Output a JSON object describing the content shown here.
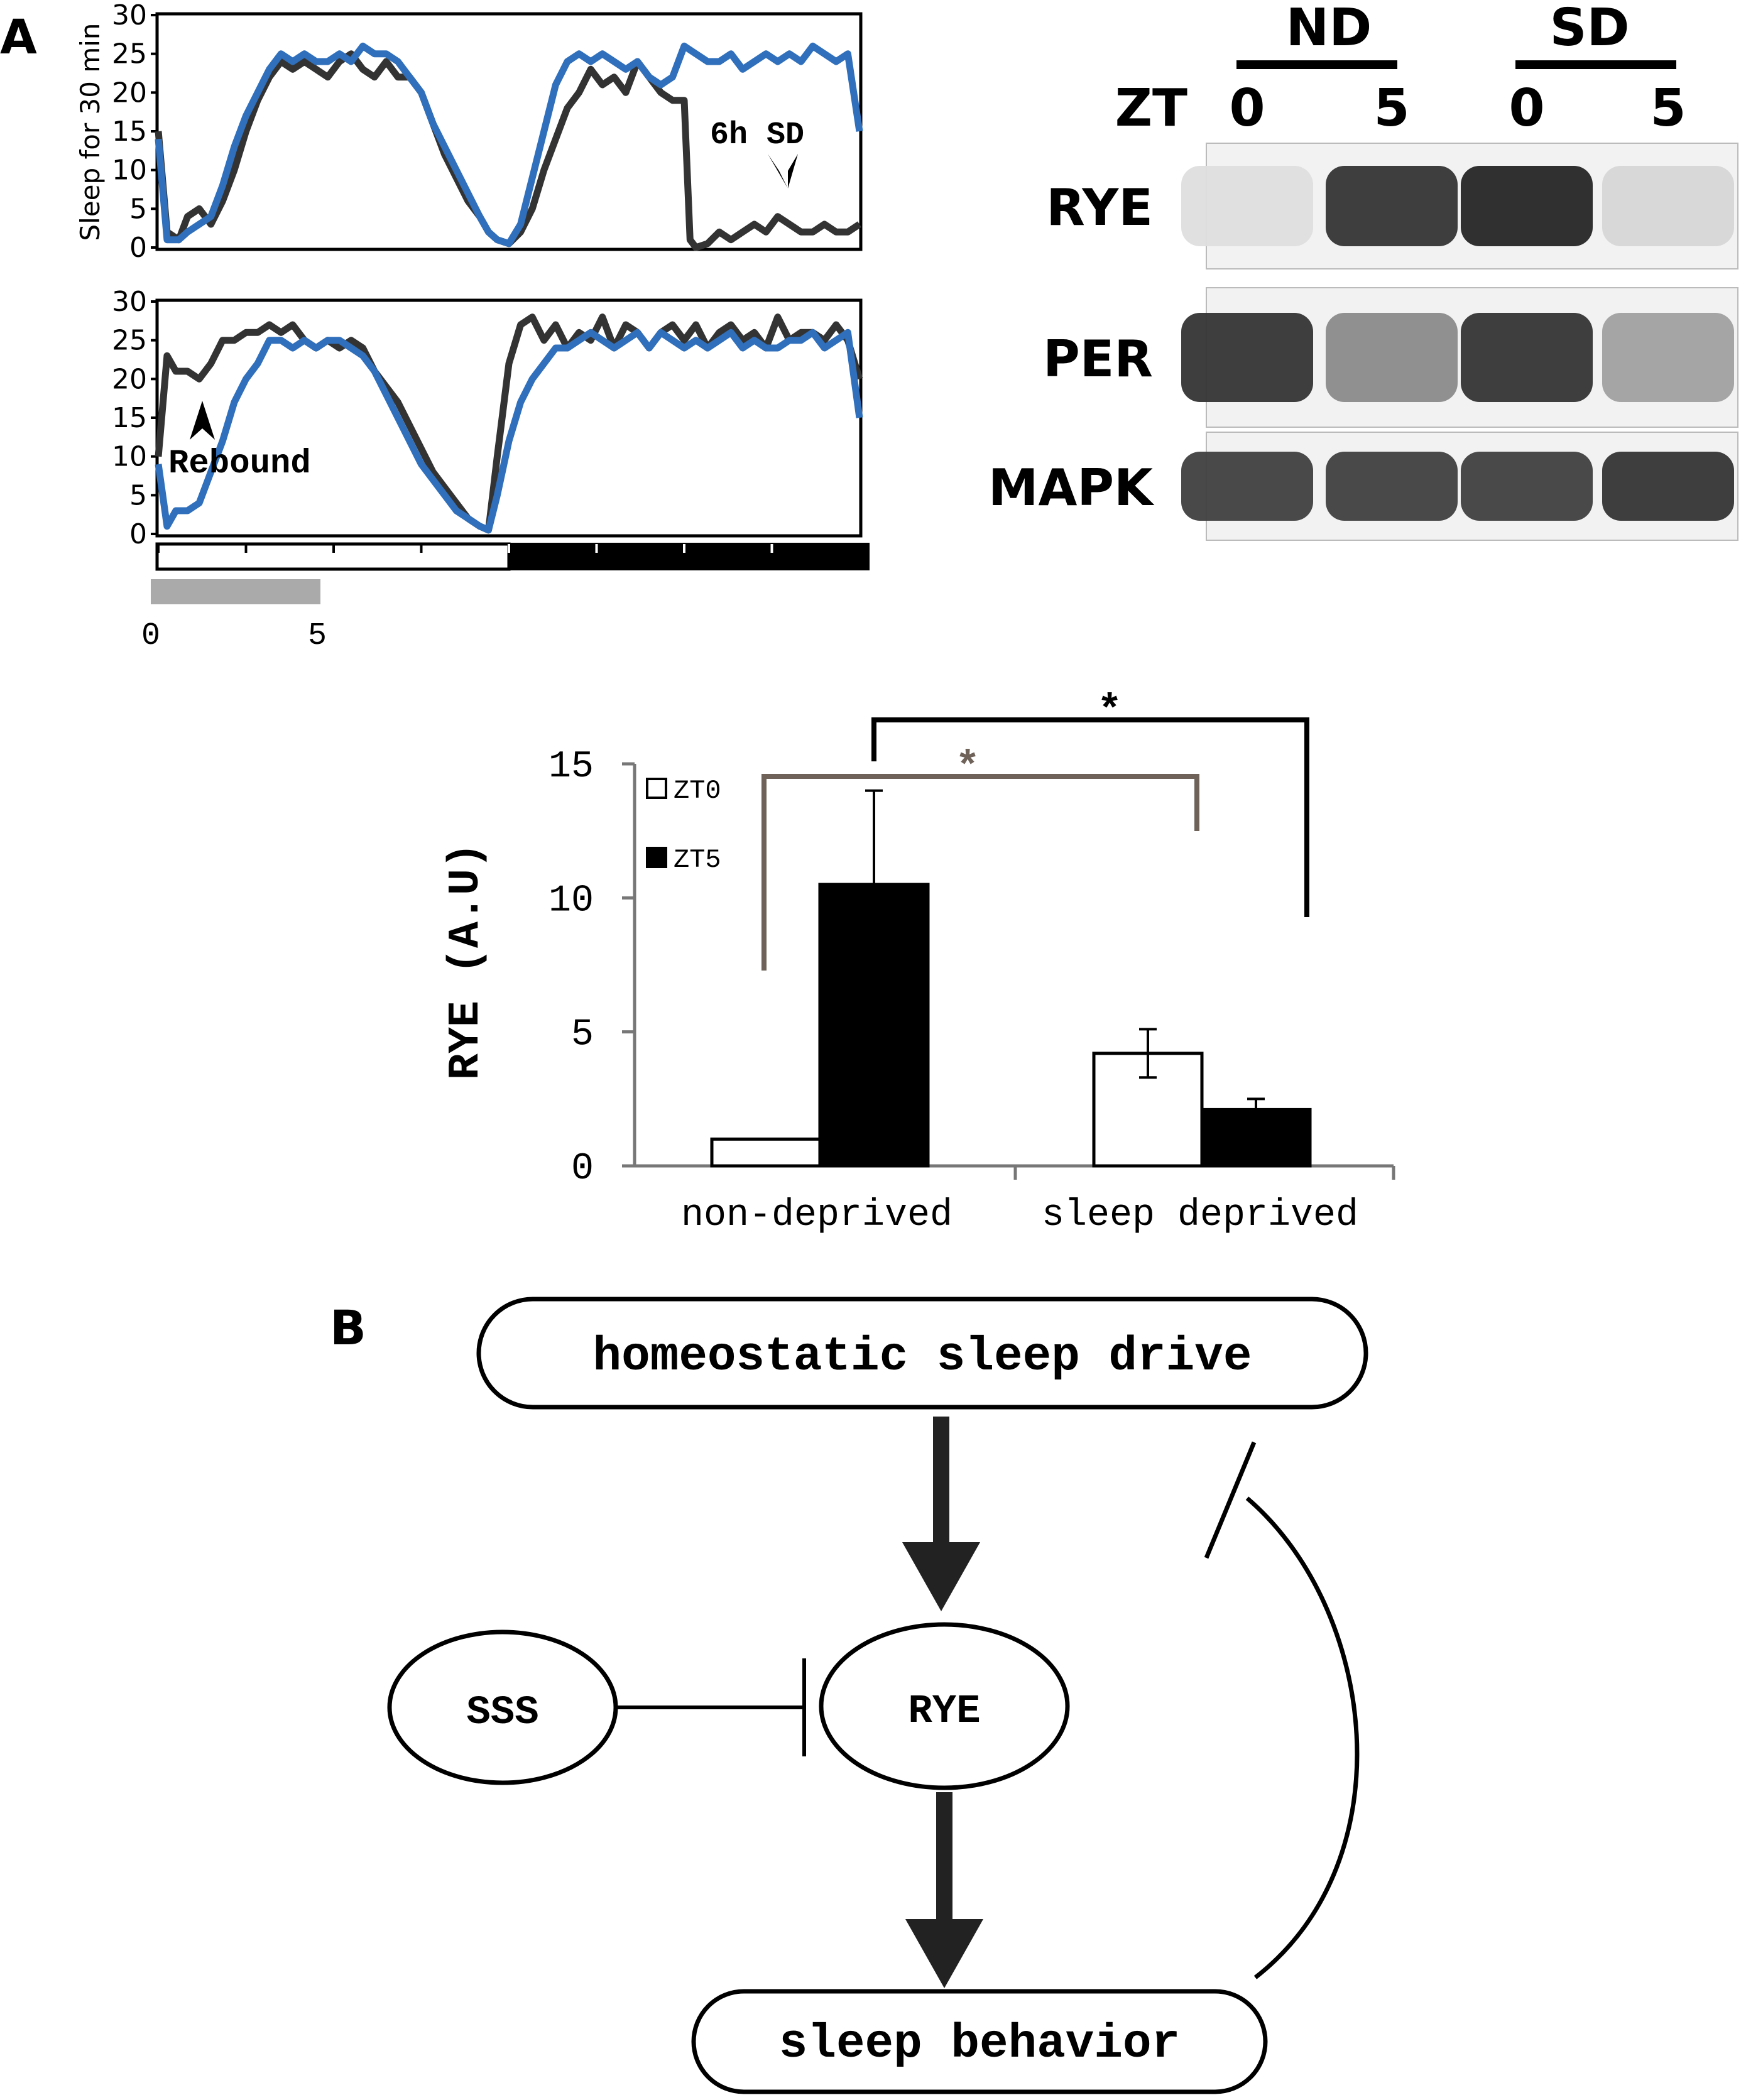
{
  "panel_labels": {
    "a": "A",
    "b": "B"
  },
  "colors": {
    "wild_type": "#333333",
    "mutant": "#2f6fbb",
    "bracket_gray": "#6e6259",
    "axis_gray": "#777777",
    "light_bar": "#ffffff",
    "dark_bar": "#000000",
    "gray_bar": "#aaaaaa"
  },
  "chart_data": [
    {
      "type": "line",
      "panel": "top sleep trace",
      "ylabel": "Sleep for 30 min",
      "ylim": [
        0,
        30
      ],
      "xlim": [
        0,
        24
      ],
      "yticks": [
        "0",
        "5",
        "10",
        "15",
        "20",
        "25",
        "30"
      ],
      "series": [
        {
          "color": "#333333",
          "x": [
            0,
            0.3,
            0.7,
            1,
            1.4,
            1.8,
            2.2,
            2.6,
            3,
            3.4,
            3.8,
            4.2,
            4.6,
            5,
            5.4,
            5.8,
            6.2,
            6.6,
            7,
            7.4,
            7.8,
            8.2,
            8.6,
            9,
            9.4,
            9.8,
            10.2,
            10.6,
            11,
            11.3,
            11.6,
            12,
            12.4,
            12.8,
            13.2,
            13.6,
            14,
            14.4,
            14.8,
            15.2,
            15.6,
            16,
            16.4,
            16.8,
            17.2,
            17.6,
            18,
            18.2,
            18.4,
            18.8,
            19.2,
            19.6,
            20,
            20.4,
            20.8,
            21.2,
            21.6,
            22,
            22.4,
            22.8,
            23.2,
            23.6,
            24
          ],
          "y": [
            15,
            2,
            1,
            4,
            5,
            3,
            6,
            10,
            15,
            19,
            22,
            24,
            23,
            24,
            23,
            22,
            24,
            25,
            23,
            22,
            24,
            22,
            22,
            20,
            16,
            12,
            9,
            6,
            4,
            2,
            1,
            0.5,
            2,
            5,
            10,
            14,
            18,
            20,
            23,
            21,
            22,
            20,
            24,
            22,
            20,
            19,
            19,
            1,
            0,
            0.5,
            2,
            1,
            2,
            3,
            2,
            4,
            3,
            2,
            2,
            3,
            2,
            2,
            3
          ]
        },
        {
          "color": "#2f6fbb",
          "x": [
            0,
            0.3,
            0.7,
            1,
            1.4,
            1.8,
            2.2,
            2.6,
            3,
            3.4,
            3.8,
            4.2,
            4.6,
            5,
            5.4,
            5.8,
            6.2,
            6.6,
            7,
            7.4,
            7.8,
            8.2,
            8.6,
            9,
            9.4,
            9.8,
            10.2,
            10.6,
            11,
            11.3,
            11.6,
            12,
            12.4,
            12.8,
            13.2,
            13.6,
            14,
            14.4,
            14.8,
            15.2,
            15.6,
            16,
            16.4,
            16.8,
            17.2,
            17.6,
            18,
            18.4,
            18.8,
            19.2,
            19.6,
            20,
            20.4,
            20.8,
            21.2,
            21.6,
            22,
            22.4,
            22.8,
            23.2,
            23.6,
            24
          ],
          "y": [
            14,
            1,
            1,
            2,
            3,
            4,
            8,
            13,
            17,
            20,
            23,
            25,
            24,
            25,
            24,
            24,
            25,
            24,
            26,
            25,
            25,
            24,
            22,
            20,
            16,
            13,
            10,
            7,
            4,
            2,
            1,
            0.5,
            3,
            9,
            15,
            21,
            24,
            25,
            24,
            25,
            24,
            23,
            24,
            22,
            21,
            22,
            26,
            25,
            24,
            24,
            25,
            23,
            24,
            25,
            24,
            25,
            24,
            26,
            25,
            24,
            25,
            15
          ]
        }
      ],
      "annotations": [
        "6h  SD"
      ]
    },
    {
      "type": "line",
      "panel": "bottom sleep trace",
      "ylim": [
        0,
        30
      ],
      "xlim": [
        0,
        24
      ],
      "yticks": [
        "0",
        "5",
        "10",
        "15",
        "20",
        "25",
        "30"
      ],
      "xticks": [
        "0",
        "5"
      ],
      "series": [
        {
          "color": "#333333",
          "x": [
            0,
            0.3,
            0.6,
            1,
            1.4,
            1.8,
            2.2,
            2.6,
            3,
            3.4,
            3.8,
            4.2,
            4.6,
            5,
            5.4,
            5.8,
            6.2,
            6.6,
            7,
            7.4,
            7.8,
            8.2,
            8.6,
            9,
            9.4,
            9.8,
            10.2,
            10.6,
            11,
            11.3,
            11.6,
            12,
            12.4,
            12.8,
            13.2,
            13.6,
            14,
            14.4,
            14.8,
            15.2,
            15.6,
            16,
            16.4,
            16.8,
            17.2,
            17.6,
            18,
            18.4,
            18.8,
            19.2,
            19.6,
            20,
            20.4,
            20.8,
            21.2,
            21.6,
            22,
            22.4,
            22.8,
            23.2,
            23.6,
            24
          ],
          "y": [
            10,
            23,
            21,
            21,
            20,
            22,
            25,
            25,
            26,
            26,
            27,
            26,
            27,
            25,
            24,
            25,
            24,
            25,
            24,
            21,
            19,
            17,
            14,
            11,
            8,
            6,
            4,
            2,
            1,
            0.5,
            10,
            22,
            27,
            28,
            25,
            27,
            24,
            26,
            25,
            28,
            24,
            27,
            26,
            24,
            26,
            27,
            25,
            27,
            24,
            26,
            27,
            25,
            26,
            24,
            28,
            25,
            26,
            26,
            25,
            27,
            25,
            20
          ]
        },
        {
          "color": "#2f6fbb",
          "x": [
            0,
            0.3,
            0.6,
            1,
            1.4,
            1.8,
            2.2,
            2.6,
            3,
            3.4,
            3.8,
            4.2,
            4.6,
            5,
            5.4,
            5.8,
            6.2,
            6.6,
            7,
            7.4,
            7.8,
            8.2,
            8.6,
            9,
            9.4,
            9.8,
            10.2,
            10.6,
            11,
            11.3,
            11.6,
            12,
            12.4,
            12.8,
            13.2,
            13.6,
            14,
            14.4,
            14.8,
            15.2,
            15.6,
            16,
            16.4,
            16.8,
            17.2,
            17.6,
            18,
            18.4,
            18.8,
            19.2,
            19.6,
            20,
            20.4,
            20.8,
            21.2,
            21.6,
            22,
            22.4,
            22.8,
            23.2,
            23.6,
            24
          ],
          "y": [
            9,
            1,
            3,
            3,
            4,
            8,
            12,
            17,
            20,
            22,
            25,
            25,
            24,
            25,
            24,
            25,
            25,
            24,
            23,
            21,
            18,
            15,
            12,
            9,
            7,
            5,
            3,
            2,
            1,
            0.5,
            5,
            12,
            17,
            20,
            22,
            24,
            24,
            25,
            26,
            25,
            24,
            25,
            26,
            24,
            26,
            25,
            24,
            25,
            24,
            25,
            26,
            24,
            25,
            24,
            24,
            25,
            25,
            26,
            24,
            25,
            26,
            15
          ]
        }
      ],
      "annotations": [
        "Rebound"
      ]
    },
    {
      "type": "bar",
      "panel": "RYE quantification",
      "categories": [
        "non-deprived",
        "sleep  deprived"
      ],
      "series": [
        {
          "name": "ZT0",
          "values": [
            1,
            4.2
          ],
          "errors": [
            0,
            0.9
          ],
          "color": "#ffffff"
        },
        {
          "name": "ZT5",
          "values": [
            10.5,
            2.1
          ],
          "errors": [
            3.5,
            0.4
          ],
          "color": "#000000"
        }
      ],
      "ylabel": "RYE  (A.U)",
      "ylim": [
        0,
        15
      ],
      "yticks": [
        "0",
        "5",
        "10",
        "15"
      ],
      "legend": "top-left",
      "significance": [
        "*",
        "*"
      ]
    }
  ],
  "blot": {
    "groups": [
      "ND",
      "SD"
    ],
    "zt_label": "ZT",
    "lanes": [
      "0",
      "5",
      "0",
      "5"
    ],
    "rows": [
      {
        "label": "RYE",
        "intensities": [
          0.06,
          0.85,
          0.92,
          0.1
        ]
      },
      {
        "label": "PER",
        "intensities": [
          0.85,
          0.45,
          0.85,
          0.35
        ]
      },
      {
        "label": "MAPK",
        "intensities": [
          0.8,
          0.8,
          0.8,
          0.85
        ]
      }
    ]
  },
  "diagram": {
    "nodes": {
      "drive": "homeostatic sleep drive",
      "sss": "SSS",
      "rye": "RYE",
      "behavior": "sleep behavior"
    }
  }
}
